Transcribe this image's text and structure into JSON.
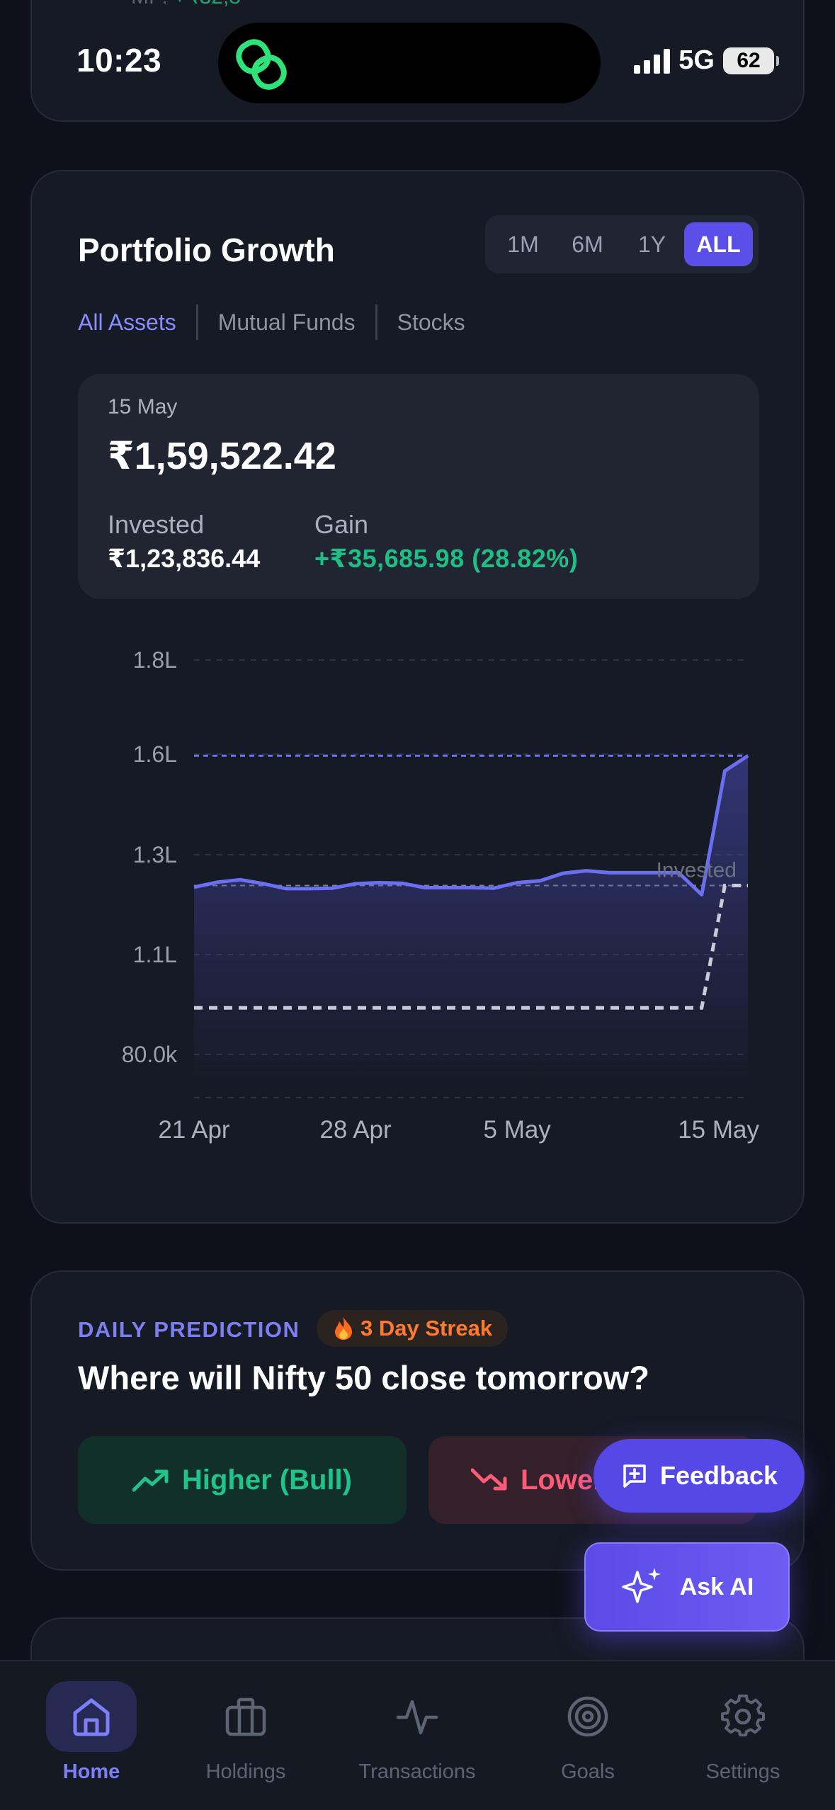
{
  "status_bar": {
    "time": "10:23",
    "network": "5G",
    "battery": "62"
  },
  "previous_card": {
    "mf_label": "MF:",
    "mf_value": "+₹32,8"
  },
  "portfolio": {
    "title": "Portfolio Growth",
    "ranges": [
      "1M",
      "6M",
      "1Y",
      "ALL"
    ],
    "active_range": "ALL",
    "filters": [
      "All Assets",
      "Mutual Funds",
      "Stocks"
    ],
    "active_filter": "All Assets",
    "summary": {
      "date": "15 May",
      "value": "₹1,59,522.42",
      "invested_label": "Invested",
      "invested_value": "₹1,23,836.44",
      "gain_label": "Gain",
      "gain_value": "+₹35,685.98 (28.82%)"
    }
  },
  "chart_data": {
    "type": "area",
    "y_tick_labels": [
      "1.8L",
      "1.6L",
      "1.3L",
      "1.1L",
      "80.0k"
    ],
    "x_tick_labels": [
      "21 Apr",
      "28 Apr",
      "5 May",
      "15 May"
    ],
    "invested_annotation": "Invested",
    "x": [
      "21 Apr",
      "22 Apr",
      "23 Apr",
      "24 Apr",
      "25 Apr",
      "26 Apr",
      "27 Apr",
      "28 Apr",
      "29 Apr",
      "30 Apr",
      "1 May",
      "2 May",
      "3 May",
      "4 May",
      "5 May",
      "6 May",
      "7 May",
      "8 May",
      "9 May",
      "10 May",
      "11 May",
      "12 May",
      "13 May",
      "14 May",
      "15 May"
    ],
    "series": [
      {
        "values": [
          123500,
          124500,
          125000,
          124200,
          123200,
          123200,
          123300,
          124200,
          124400,
          124300,
          123400,
          123400,
          123400,
          123300,
          124400,
          124800,
          126300,
          126800,
          126400,
          126400,
          126400,
          126400,
          122000,
          155000,
          159522
        ]
      },
      {
        "values": [
          94000,
          94000,
          94000,
          94000,
          94000,
          94000,
          94000,
          94000,
          94000,
          94000,
          94000,
          94000,
          94000,
          94000,
          94000,
          94000,
          94000,
          94000,
          94000,
          94000,
          94000,
          94000,
          94000,
          123836,
          123836
        ]
      }
    ],
    "reference_lines": [
      159522,
      123836
    ],
    "y_axis_ticks": [
      180000,
      160000,
      130000,
      110000,
      80000
    ],
    "grid": true,
    "colors": {
      "value": "#6b6ff2",
      "invested": "#9aa0ad"
    }
  },
  "prediction": {
    "label": "DAILY PREDICTION",
    "streak_icon": "fire-icon",
    "streak": "3 Day Streak",
    "question": "Where will Nifty 50 close tomorrow?",
    "bull": "Higher (Bull)",
    "bear": "Lower"
  },
  "fab": {
    "feedback": "Feedback",
    "ask_ai": "Ask AI"
  },
  "tabs": [
    {
      "label": "Home",
      "icon": "home-icon",
      "active": true
    },
    {
      "label": "Holdings",
      "icon": "briefcase-icon",
      "active": false
    },
    {
      "label": "Transactions",
      "icon": "activity-icon",
      "active": false
    },
    {
      "label": "Goals",
      "icon": "target-icon",
      "active": false
    },
    {
      "label": "Settings",
      "icon": "gear-icon",
      "active": false
    }
  ],
  "colors": {
    "accent": "#5a4fe8",
    "gain": "#1fbf84",
    "loss": "#ff5b78",
    "background": "#0e1119",
    "card": "#161a25"
  }
}
